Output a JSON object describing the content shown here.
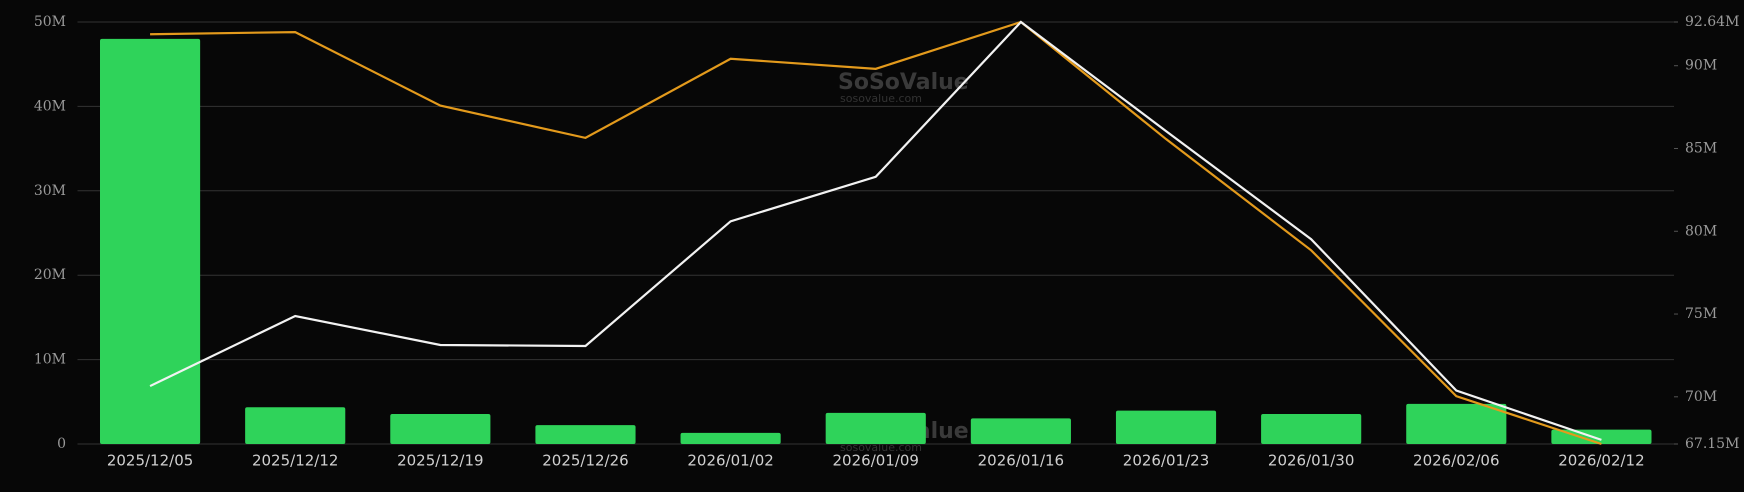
{
  "chart_data": {
    "type": "bar-line",
    "categories": [
      "2025/12/05",
      "2025/12/12",
      "2025/12/19",
      "2025/12/26",
      "2026/01/02",
      "2026/01/09",
      "2026/01/16",
      "2026/01/23",
      "2026/01/30",
      "2026/02/06",
      "2026/02/12"
    ],
    "series": [
      {
        "type": "bar",
        "color": "#2fd35a",
        "values": [
          48000000,
          4350000,
          3560000,
          2240000,
          1320000,
          3690000,
          3030000,
          3960000,
          3560000,
          4750000,
          1710000
        ]
      },
      {
        "type": "line",
        "axis": "y2",
        "color": "#e39a1c",
        "values": [
          91900000,
          92030000,
          87590000,
          85640000,
          90420000,
          89810000,
          92640000,
          85570000,
          78850000,
          70040000,
          67150000
        ]
      },
      {
        "type": "line",
        "axis": "y2",
        "color": "#f2f2f2",
        "values": [
          70650000,
          74880000,
          73130000,
          73070000,
          80600000,
          83290000,
          92640000,
          86050000,
          79520000,
          70380000,
          67400000
        ]
      }
    ],
    "ylim": [
      0,
      50000000
    ],
    "yticks": [
      0,
      {
        "value": 10000000,
        "label": "10M"
      },
      {
        "value": 20000000,
        "label": "20M"
      },
      {
        "value": 30000000,
        "label": "30M"
      },
      {
        "value": 40000000,
        "label": "40M"
      },
      {
        "value": 50000000,
        "label": "50M"
      }
    ],
    "y2lim": [
      67150000,
      92640000
    ],
    "y2ticks": [
      {
        "value": 67150000,
        "label": "67.15M"
      },
      {
        "value": 70000000,
        "label": "70M"
      },
      {
        "value": 75000000,
        "label": "75M"
      },
      {
        "value": 80000000,
        "label": "80M"
      },
      {
        "value": 85000000,
        "label": "85M"
      },
      {
        "value": 90000000,
        "label": "90M"
      },
      {
        "value": 92640000,
        "label": "92.64M"
      }
    ],
    "grid": true,
    "watermark": {
      "name": "SoSoValue",
      "url": "sosovalue.com"
    }
  }
}
